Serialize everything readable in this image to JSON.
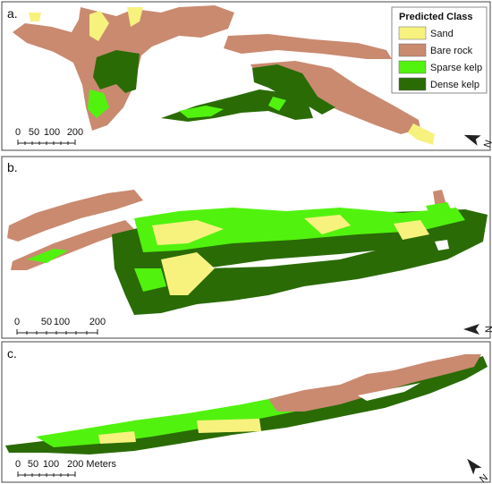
{
  "legend": {
    "title": "Predicted Class",
    "items": [
      {
        "label": "Sand",
        "color": "#f7f27e"
      },
      {
        "label": "Bare rock",
        "color": "#c98a70"
      },
      {
        "label": "Sparse kelp",
        "color": "#52f20f"
      },
      {
        "label": "Dense kelp",
        "color": "#2a6b06"
      }
    ]
  },
  "panels": [
    {
      "label": "a.",
      "scale": [
        "0",
        "50",
        "100",
        "200"
      ],
      "north": "N"
    },
    {
      "label": "b.",
      "scale": [
        "0",
        "50",
        "100",
        "200"
      ],
      "north": "N"
    },
    {
      "label": "c.",
      "scale": [
        "0",
        "50",
        "100",
        "200 Meters"
      ],
      "north": "N"
    }
  ]
}
